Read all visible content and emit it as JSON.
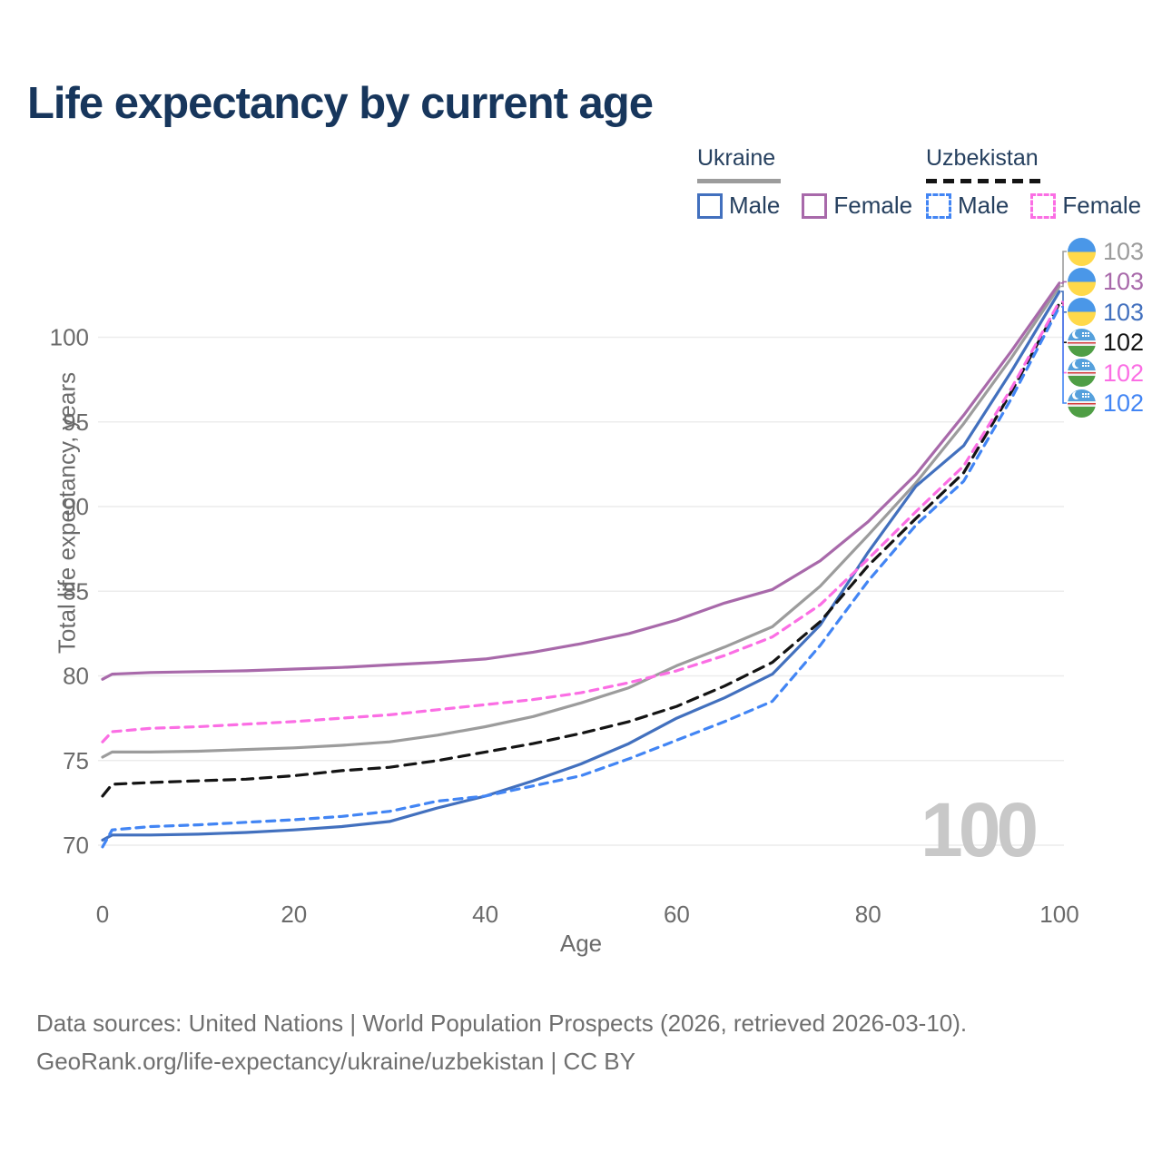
{
  "title": "Life expectancy by current age",
  "colors": {
    "title": "#17365c",
    "legend_text": "#26405f",
    "axis_text": "#6b6b6b",
    "gridline": "#ececec",
    "watermark": "#c8c8c8",
    "footer_text": "#6f6f6f"
  },
  "legend": {
    "groups": [
      {
        "country": "Ukraine",
        "line_style": "solid",
        "underline_color": "#9c9c9c",
        "items": [
          {
            "label": "Male",
            "color": "#4270be",
            "dashed": false
          },
          {
            "label": "Female",
            "color": "#a869aa",
            "dashed": false
          }
        ]
      },
      {
        "country": "Uzbekistan",
        "line_style": "dashed",
        "underline_color": "#141414",
        "items": [
          {
            "label": "Male",
            "color": "#4285f4",
            "dashed": true
          },
          {
            "label": "Female",
            "color": "#fb6ee4",
            "dashed": true
          }
        ]
      }
    ]
  },
  "chart_data": {
    "type": "line",
    "title": "Life expectancy by current age",
    "xlabel": "Age",
    "ylabel": "Total life expectancy, years",
    "xlim": [
      0,
      100
    ],
    "ylim": [
      68.5,
      104
    ],
    "x_ticks": [
      0,
      20,
      40,
      60,
      80,
      100
    ],
    "y_ticks": [
      70,
      75,
      80,
      85,
      90,
      95,
      100
    ],
    "grid": "horizontal-only",
    "legend_position": "top-right",
    "x": [
      0,
      1,
      5,
      10,
      15,
      20,
      25,
      30,
      35,
      40,
      45,
      50,
      55,
      60,
      65,
      70,
      75,
      80,
      85,
      90,
      95,
      100
    ],
    "series": [
      {
        "id": "ukraine-total",
        "name": "Ukraine — both sexes",
        "country": "Ukraine",
        "color": "#9c9c9c",
        "dashed": false,
        "values": [
          75.2,
          75.5,
          75.5,
          75.55,
          75.65,
          75.75,
          75.9,
          76.1,
          76.5,
          77.0,
          77.6,
          78.4,
          79.3,
          80.6,
          81.7,
          82.9,
          85.3,
          88.3,
          91.4,
          94.9,
          98.8,
          103.0
        ]
      },
      {
        "id": "ukraine-female",
        "name": "Ukraine — Female",
        "country": "Ukraine",
        "color": "#a869aa",
        "dashed": false,
        "values": [
          79.8,
          80.1,
          80.2,
          80.25,
          80.3,
          80.4,
          80.5,
          80.65,
          80.8,
          81.0,
          81.4,
          81.9,
          82.5,
          83.3,
          84.3,
          85.1,
          86.8,
          89.1,
          91.9,
          95.4,
          99.2,
          103.2
        ]
      },
      {
        "id": "ukraine-male",
        "name": "Ukraine — Male",
        "country": "Ukraine",
        "color": "#4270be",
        "dashed": false,
        "values": [
          70.3,
          70.6,
          70.6,
          70.65,
          70.75,
          70.9,
          71.1,
          71.4,
          72.2,
          72.9,
          73.8,
          74.8,
          76.0,
          77.5,
          78.7,
          80.1,
          83.0,
          87.3,
          91.2,
          93.6,
          98.0,
          102.7
        ]
      },
      {
        "id": "uzbekistan-total",
        "name": "Uzbekistan — both sexes",
        "country": "Uzbekistan",
        "color": "#141414",
        "dashed": true,
        "values": [
          72.9,
          73.6,
          73.7,
          73.8,
          73.9,
          74.1,
          74.4,
          74.6,
          75.0,
          75.5,
          76.0,
          76.6,
          77.3,
          78.2,
          79.4,
          80.8,
          83.2,
          86.5,
          89.3,
          92.0,
          96.8,
          102.0
        ]
      },
      {
        "id": "uzbekistan-female",
        "name": "Uzbekistan — Female",
        "country": "Uzbekistan",
        "color": "#fb6ee4",
        "dashed": true,
        "values": [
          76.1,
          76.7,
          76.9,
          77.0,
          77.15,
          77.3,
          77.5,
          77.7,
          78.0,
          78.3,
          78.6,
          79.0,
          79.6,
          80.3,
          81.2,
          82.3,
          84.2,
          86.9,
          89.7,
          92.4,
          97.0,
          102.1
        ]
      },
      {
        "id": "uzbekistan-male",
        "name": "Uzbekistan — Male",
        "country": "Uzbekistan",
        "color": "#4285f4",
        "dashed": true,
        "values": [
          69.9,
          70.9,
          71.1,
          71.2,
          71.35,
          71.5,
          71.7,
          72.0,
          72.6,
          72.9,
          73.5,
          74.1,
          75.1,
          76.2,
          77.3,
          78.5,
          81.8,
          85.6,
          88.9,
          91.5,
          96.4,
          101.8
        ]
      }
    ]
  },
  "end_labels": [
    {
      "series": "ukraine-total",
      "value": "103",
      "flag": "ukraine"
    },
    {
      "series": "ukraine-female",
      "value": "103",
      "flag": "ukraine"
    },
    {
      "series": "ukraine-male",
      "value": "103",
      "flag": "ukraine"
    },
    {
      "series": "uzbekistan-total",
      "value": "102",
      "flag": "uzbekistan"
    },
    {
      "series": "uzbekistan-female",
      "value": "102",
      "flag": "uzbekistan"
    },
    {
      "series": "uzbekistan-male",
      "value": "102",
      "flag": "uzbekistan"
    }
  ],
  "watermark": "100",
  "footer": {
    "line1": "Data sources: United Nations | World Population Prospects (2026, retrieved 2026-03-10).",
    "line2": "GeoRank.org/life-expectancy/ukraine/uzbekistan | CC BY"
  }
}
